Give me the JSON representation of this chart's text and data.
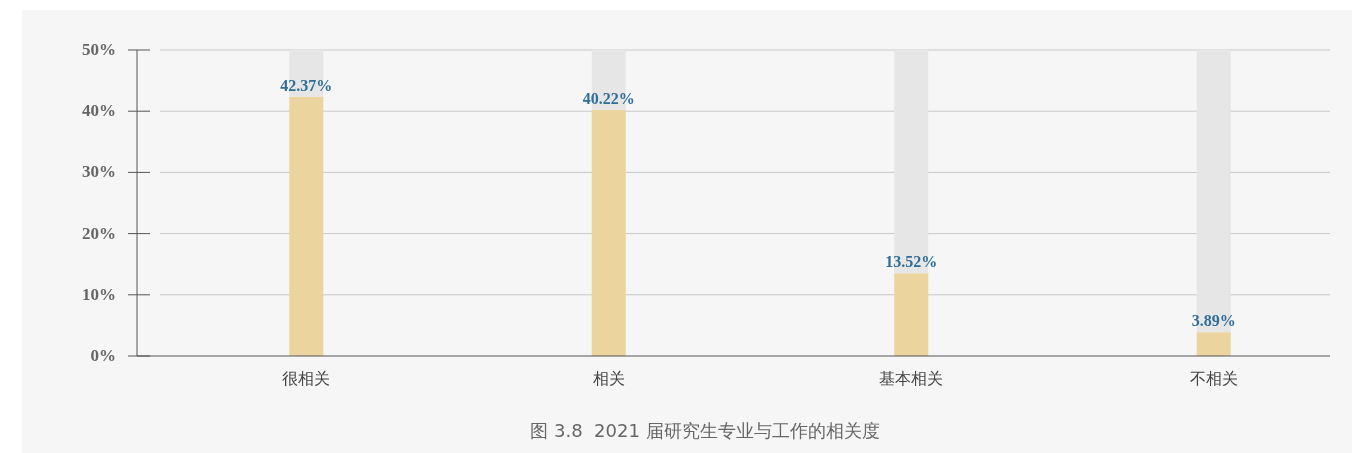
{
  "chart_data": {
    "type": "bar",
    "annotations": [
      "图 3.8  2021 届研究生专业与工作的相关度"
    ],
    "categories": [
      "很相关",
      "相关",
      "基本相关",
      "不相关"
    ],
    "series": [
      {
        "color": "#ebd49e",
        "values": [
          42.37,
          40.22,
          13.52,
          3.89
        ],
        "value_labels": [
          "42.37%",
          "40.22%",
          "13.52%",
          "3.89%"
        ]
      },
      {
        "color": "#e6e6e6",
        "values": [
          7.63,
          9.78,
          36.48,
          46.11
        ]
      }
    ],
    "stacked": true,
    "ylim": [
      0,
      50
    ],
    "yticks": [
      {
        "value": 0,
        "label": "0%"
      },
      {
        "value": 10,
        "label": "10%"
      },
      {
        "value": 20,
        "label": "20%"
      },
      {
        "value": 30,
        "label": "30%"
      },
      {
        "value": 40,
        "label": "40%"
      },
      {
        "value": 50,
        "label": "50%"
      }
    ],
    "grid": "y"
  }
}
